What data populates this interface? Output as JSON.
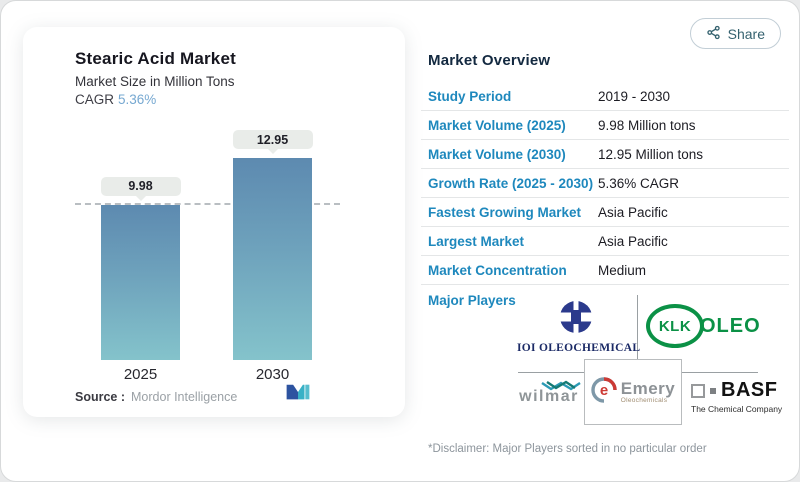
{
  "share": {
    "label": "Share"
  },
  "chart_panel": {
    "title": "Stearic Acid Market",
    "subtitle": "Market Size in Million Tons",
    "cagr_label": "CAGR",
    "cagr_value": "5.36%",
    "source_label": "Source :",
    "source_value": "Mordor Intelligence"
  },
  "chart_data": {
    "type": "bar",
    "title": "Stearic Acid Market",
    "subtitle": "Market Size in Million Tons",
    "categories": [
      "2025",
      "2030"
    ],
    "values": [
      9.98,
      12.95
    ],
    "value_labels": [
      "9.98",
      "12.95"
    ],
    "unit": "Million Tons",
    "cagr": "5.36%",
    "ylim": [
      0,
      14
    ],
    "reference_line": 9.98,
    "grid": false,
    "bar_gradient": [
      "#5d8ab0",
      "#84c3cb"
    ]
  },
  "overview": {
    "heading": "Market Overview",
    "rows": [
      {
        "label": "Study Period",
        "value": "2019 - 2030"
      },
      {
        "label": "Market Volume (2025)",
        "value": "9.98 Million tons"
      },
      {
        "label": "Market Volume (2030)",
        "value": "12.95 Million tons"
      },
      {
        "label": "Growth Rate (2025 - 2030)",
        "value": "5.36% CAGR"
      },
      {
        "label": "Fastest Growing Market",
        "value": "Asia Pacific"
      },
      {
        "label": "Largest Market",
        "value": "Asia Pacific"
      },
      {
        "label": "Market Concentration",
        "value": "Medium"
      }
    ],
    "major_players_label": "Major Players",
    "players": [
      "IOI OLEOCHEMICAL",
      "KLK OLEO",
      "Wilmar",
      "Emery Oleochemicals",
      "BASF"
    ],
    "logos": {
      "ioi_text": "IOI OLEOCHEMICAL",
      "klk_text": "KLK",
      "klk_oleo_text": "OLEO",
      "wilmar_text": "wilmar",
      "emery_text": "Emery",
      "emery_sub_text": "Oleochemicals",
      "basf_text": "BASF",
      "basf_sub_text": "The Chemical Company"
    },
    "disclaimer": "*Disclaimer: Major Players sorted in no particular order"
  },
  "colors": {
    "row_label_blue": "#1e88bd",
    "heading_navy": "#132940",
    "cagr_blue": "#76a8d1",
    "bar_top": "#5d8ab0",
    "bar_bottom": "#84c3cb",
    "klk_green": "#0b9146",
    "ioi_navy": "#1b2a66",
    "share_teal": "#35626f"
  }
}
